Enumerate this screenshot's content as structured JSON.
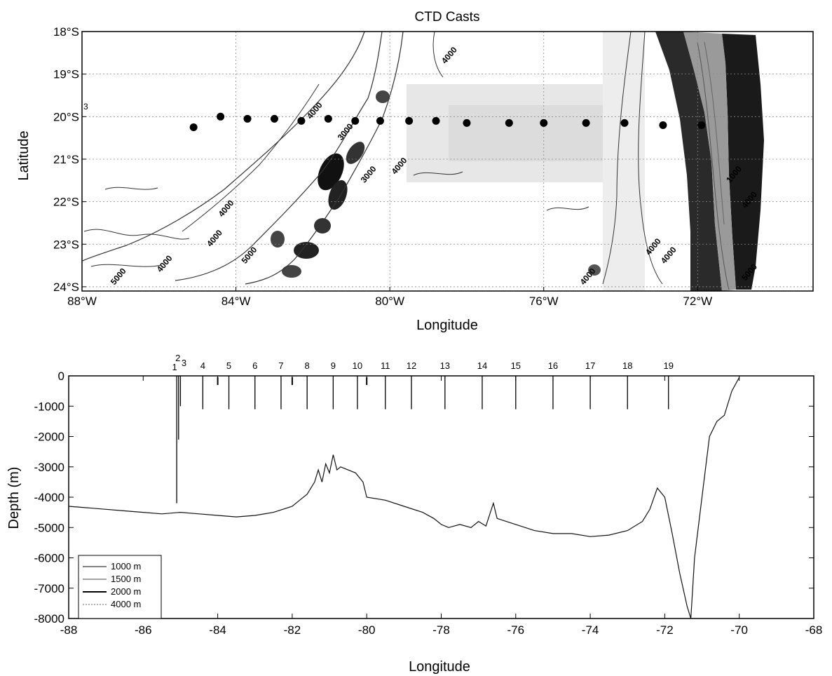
{
  "chart_data": [
    {
      "type": "contour-map",
      "title": "CTD Casts",
      "xlabel": "Longitude",
      "ylabel": "Latitude",
      "xlim": [
        -88,
        -69
      ],
      "ylim": [
        -24.1,
        -18
      ],
      "grid": true,
      "xtick_values": [
        -88,
        -84,
        -80,
        -76,
        -72
      ],
      "xtick_labels": [
        "88°W",
        "84°W",
        "80°W",
        "76°W",
        "72°W"
      ],
      "ytick_values": [
        -18,
        -19,
        -20,
        -21,
        -22,
        -23,
        -24
      ],
      "ytick_labels": [
        "18°S",
        "19°S",
        "20°S",
        "21°S",
        "22°S",
        "23°S",
        "24°S"
      ],
      "contour_labels": [
        {
          "text": "4000",
          "lon": -78.4,
          "lat": -18.6
        },
        {
          "text": "4000",
          "lon": -81.9,
          "lat": -19.9
        },
        {
          "text": "3000",
          "lon": -81.1,
          "lat": -20.4
        },
        {
          "text": "4000",
          "lon": -79.7,
          "lat": -21.2
        },
        {
          "text": "3000",
          "lon": -80.5,
          "lat": -21.4
        },
        {
          "text": "4000",
          "lon": -84.2,
          "lat": -22.2
        },
        {
          "text": "5000",
          "lon": -83.6,
          "lat": -23.3
        },
        {
          "text": "4000",
          "lon": -84.5,
          "lat": -22.9
        },
        {
          "text": "4000",
          "lon": -85.8,
          "lat": -23.5
        },
        {
          "text": "5000",
          "lon": -87.0,
          "lat": -23.8
        },
        {
          "text": "4000",
          "lon": -74.8,
          "lat": -23.8
        },
        {
          "text": "4000",
          "lon": -73.1,
          "lat": -23.1
        },
        {
          "text": "4000",
          "lon": -72.7,
          "lat": -23.3
        },
        {
          "text": "1000",
          "lon": -71.0,
          "lat": -21.4
        },
        {
          "text": "4000",
          "lon": -70.6,
          "lat": -22.0
        },
        {
          "text": "5000",
          "lon": -70.6,
          "lat": -23.7
        }
      ],
      "stations": [
        {
          "lon": -85.1,
          "lat": -20.25
        },
        {
          "lon": -84.4,
          "lat": -20.0
        },
        {
          "lon": -83.7,
          "lat": -20.05
        },
        {
          "lon": -83.0,
          "lat": -20.05
        },
        {
          "lon": -82.3,
          "lat": -20.1
        },
        {
          "lon": -81.6,
          "lat": -20.05
        },
        {
          "lon": -80.9,
          "lat": -20.1
        },
        {
          "lon": -80.25,
          "lat": -20.1
        },
        {
          "lon": -79.5,
          "lat": -20.1
        },
        {
          "lon": -78.8,
          "lat": -20.1
        },
        {
          "lon": -78.0,
          "lat": -20.15
        },
        {
          "lon": -76.9,
          "lat": -20.15
        },
        {
          "lon": -76.0,
          "lat": -20.15
        },
        {
          "lon": -74.9,
          "lat": -20.15
        },
        {
          "lon": -73.9,
          "lat": -20.15
        },
        {
          "lon": -72.9,
          "lat": -20.2
        },
        {
          "lon": -71.9,
          "lat": -20.2
        }
      ],
      "corner_label": "3"
    },
    {
      "type": "line",
      "xlabel": "Longitude",
      "ylabel": "Depth (m)",
      "xlim": [
        -88,
        -68
      ],
      "ylim": [
        -8000,
        0
      ],
      "xticks": [
        -88,
        -86,
        -84,
        -82,
        -80,
        -78,
        -76,
        -74,
        -72,
        -70,
        -68
      ],
      "yticks": [
        0,
        -1000,
        -2000,
        -3000,
        -4000,
        -5000,
        -6000,
        -7000,
        -8000
      ],
      "legend": {
        "placement": "lower-left",
        "entries": [
          "1000 m",
          "1500 m",
          "2000 m",
          "4000 m"
        ]
      },
      "bathymetry": {
        "x": [
          -88,
          -87.5,
          -87,
          -86.5,
          -86,
          -85.5,
          -85,
          -84.5,
          -84,
          -83.5,
          -83,
          -82.5,
          -82,
          -81.8,
          -81.6,
          -81.4,
          -81.3,
          -81.2,
          -81.1,
          -81.0,
          -80.9,
          -80.8,
          -80.7,
          -80.5,
          -80.3,
          -80.1,
          -80.0,
          -79.5,
          -79,
          -78.5,
          -78.2,
          -78.0,
          -77.8,
          -77.5,
          -77.2,
          -77.0,
          -76.8,
          -76.6,
          -76.5,
          -76,
          -75.5,
          -75,
          -74.5,
          -74,
          -73.5,
          -73,
          -72.6,
          -72.4,
          -72.2,
          -72.0,
          -71.8,
          -71.6,
          -71.4,
          -71.3,
          -71.2,
          -71.0,
          -70.8,
          -70.6,
          -70.4,
          -70.2,
          -70.0
        ],
        "y": [
          -4300,
          -4350,
          -4400,
          -4450,
          -4500,
          -4550,
          -4500,
          -4550,
          -4600,
          -4650,
          -4600,
          -4500,
          -4300,
          -4100,
          -3900,
          -3500,
          -3100,
          -3500,
          -2900,
          -3200,
          -2600,
          -3100,
          -3000,
          -3100,
          -3200,
          -3500,
          -4000,
          -4100,
          -4300,
          -4500,
          -4700,
          -4900,
          -5000,
          -4900,
          -5000,
          -4800,
          -4950,
          -4200,
          -4700,
          -4900,
          -5100,
          -5200,
          -5200,
          -5300,
          -5250,
          -5100,
          -4800,
          -4400,
          -3700,
          -4000,
          -5200,
          -6500,
          -7600,
          -8000,
          -6000,
          -4000,
          -2000,
          -1500,
          -1300,
          -500,
          -50
        ]
      },
      "casts": [
        {
          "station": "1",
          "lon": -85.1,
          "depth": -4200
        },
        {
          "station": "2",
          "lon": -85.05,
          "depth": -2100
        },
        {
          "station": "3",
          "lon": -85.0,
          "depth": -1000
        },
        {
          "station": "4",
          "lon": -84.4,
          "depth": -1100
        },
        {
          "station": "5",
          "lon": -83.7,
          "depth": -1100
        },
        {
          "station": "6",
          "lon": -83.0,
          "depth": -1100
        },
        {
          "station": "7",
          "lon": -82.3,
          "depth": -1100
        },
        {
          "station": "8",
          "lon": -81.6,
          "depth": -1100
        },
        {
          "station": "9",
          "lon": -80.9,
          "depth": -1100
        },
        {
          "station": "10",
          "lon": -80.25,
          "depth": -1100
        },
        {
          "station": "11",
          "lon": -79.5,
          "depth": -1100
        },
        {
          "station": "12",
          "lon": -78.8,
          "depth": -1100
        },
        {
          "station": "13",
          "lon": -77.9,
          "depth": -1100
        },
        {
          "station": "14",
          "lon": -76.9,
          "depth": -1100
        },
        {
          "station": "15",
          "lon": -76.0,
          "depth": -1100
        },
        {
          "station": "16",
          "lon": -75.0,
          "depth": -1100
        },
        {
          "station": "17",
          "lon": -74.0,
          "depth": -1100
        },
        {
          "station": "18",
          "lon": -73.0,
          "depth": -1100
        },
        {
          "station": "19",
          "lon": -71.9,
          "depth": -1100
        }
      ],
      "short_ticks": [
        {
          "lon": -84.0,
          "depth": -300
        },
        {
          "lon": -82.0,
          "depth": -300
        },
        {
          "lon": -80.0,
          "depth": -300
        }
      ]
    }
  ]
}
